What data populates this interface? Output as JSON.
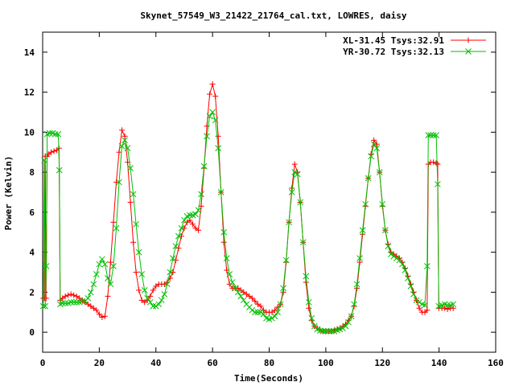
{
  "chart_data": {
    "type": "line",
    "title": "Skynet_57549_W3_21422_21764_cal.txt, LOWRES, daisy",
    "xlabel": "Time(Seconds)",
    "ylabel": "Power (Kelvin)",
    "xlim": [
      0,
      160
    ],
    "ylim": [
      -1,
      15
    ],
    "xticks": [
      0,
      20,
      40,
      60,
      80,
      100,
      120,
      140,
      160
    ],
    "yticks": [
      0,
      2,
      4,
      6,
      8,
      10,
      12,
      14
    ],
    "grid": false,
    "legend_position": "top-right",
    "series": [
      {
        "name": "XL-31.45 Tsys:32.91",
        "color": "#ff0000",
        "marker": "plus",
        "points": [
          [
            0.2,
            1.7
          ],
          [
            0.6,
            1.7
          ],
          [
            0.9,
            8.8
          ],
          [
            1.2,
            1.7
          ],
          [
            1.6,
            8.8
          ],
          [
            2.0,
            8.9
          ],
          [
            3.0,
            9.0
          ],
          [
            4.0,
            9.05
          ],
          [
            5.0,
            9.1
          ],
          [
            5.8,
            9.2
          ],
          [
            6.2,
            1.6
          ],
          [
            7,
            1.7
          ],
          [
            8,
            1.8
          ],
          [
            9,
            1.85
          ],
          [
            10,
            1.9
          ],
          [
            11,
            1.85
          ],
          [
            12,
            1.8
          ],
          [
            13,
            1.7
          ],
          [
            14,
            1.6
          ],
          [
            15,
            1.5
          ],
          [
            16,
            1.4
          ],
          [
            17,
            1.3
          ],
          [
            18,
            1.2
          ],
          [
            19,
            1.1
          ],
          [
            20,
            0.9
          ],
          [
            21,
            0.75
          ],
          [
            22,
            0.8
          ],
          [
            23,
            1.8
          ],
          [
            24,
            3.5
          ],
          [
            25,
            5.5
          ],
          [
            26,
            7.5
          ],
          [
            27,
            9.0
          ],
          [
            28,
            10.1
          ],
          [
            29,
            9.8
          ],
          [
            30,
            8.5
          ],
          [
            31,
            6.5
          ],
          [
            32,
            4.5
          ],
          [
            33,
            3.0
          ],
          [
            34,
            2.1
          ],
          [
            35,
            1.6
          ],
          [
            36,
            1.5
          ],
          [
            37,
            1.6
          ],
          [
            38,
            1.8
          ],
          [
            39,
            2.1
          ],
          [
            40,
            2.3
          ],
          [
            41,
            2.4
          ],
          [
            42,
            2.4
          ],
          [
            43,
            2.4
          ],
          [
            44,
            2.5
          ],
          [
            45,
            2.7
          ],
          [
            46,
            3.0
          ],
          [
            47,
            3.6
          ],
          [
            48,
            4.2
          ],
          [
            49,
            4.8
          ],
          [
            50,
            5.2
          ],
          [
            51,
            5.5
          ],
          [
            52,
            5.6
          ],
          [
            53,
            5.4
          ],
          [
            54,
            5.2
          ],
          [
            55,
            5.1
          ],
          [
            56,
            6.3
          ],
          [
            57,
            8.2
          ],
          [
            58,
            10.3
          ],
          [
            59,
            11.9
          ],
          [
            60,
            12.4
          ],
          [
            61,
            11.8
          ],
          [
            62,
            9.8
          ],
          [
            63,
            7.0
          ],
          [
            64,
            4.5
          ],
          [
            65,
            3.1
          ],
          [
            66,
            2.4
          ],
          [
            67,
            2.2
          ],
          [
            68,
            2.2
          ],
          [
            69,
            2.2
          ],
          [
            70,
            2.1
          ],
          [
            71,
            2.0
          ],
          [
            72,
            1.9
          ],
          [
            73,
            1.8
          ],
          [
            74,
            1.7
          ],
          [
            75,
            1.55
          ],
          [
            76,
            1.4
          ],
          [
            77,
            1.3
          ],
          [
            78,
            1.1
          ],
          [
            79,
            1.0
          ],
          [
            80,
            1.0
          ],
          [
            81,
            1.0
          ],
          [
            82,
            1.1
          ],
          [
            83,
            1.25
          ],
          [
            84,
            1.4
          ],
          [
            85,
            2.0
          ],
          [
            86,
            3.5
          ],
          [
            87,
            5.5
          ],
          [
            88,
            7.2
          ],
          [
            89,
            8.4
          ],
          [
            90,
            8.0
          ],
          [
            91,
            6.5
          ],
          [
            92,
            4.5
          ],
          [
            93,
            2.5
          ],
          [
            94,
            1.2
          ],
          [
            95,
            0.6
          ],
          [
            96,
            0.3
          ],
          [
            97,
            0.2
          ],
          [
            98,
            0.1
          ],
          [
            99,
            0.05
          ],
          [
            100,
            0.05
          ],
          [
            101,
            0.05
          ],
          [
            102,
            0.05
          ],
          [
            103,
            0.1
          ],
          [
            104,
            0.15
          ],
          [
            105,
            0.2
          ],
          [
            106,
            0.3
          ],
          [
            107,
            0.4
          ],
          [
            108,
            0.6
          ],
          [
            109,
            0.8
          ],
          [
            110,
            1.3
          ],
          [
            111,
            2.2
          ],
          [
            112,
            3.5
          ],
          [
            113,
            4.9
          ],
          [
            114,
            6.3
          ],
          [
            115,
            7.7
          ],
          [
            116,
            8.9
          ],
          [
            117,
            9.6
          ],
          [
            118,
            9.4
          ],
          [
            119,
            8.0
          ],
          [
            120,
            6.3
          ],
          [
            121,
            5.1
          ],
          [
            122,
            4.4
          ],
          [
            123,
            4.0
          ],
          [
            124,
            3.9
          ],
          [
            125,
            3.8
          ],
          [
            126,
            3.7
          ],
          [
            127,
            3.5
          ],
          [
            128,
            3.2
          ],
          [
            129,
            2.8
          ],
          [
            130,
            2.4
          ],
          [
            131,
            2.0
          ],
          [
            132,
            1.6
          ],
          [
            133,
            1.2
          ],
          [
            134,
            1.0
          ],
          [
            135,
            1.0
          ],
          [
            135.8,
            1.1
          ],
          [
            136.2,
            8.4
          ],
          [
            137,
            8.5
          ],
          [
            138,
            8.5
          ],
          [
            139,
            8.45
          ],
          [
            139.5,
            8.4
          ],
          [
            139.9,
            1.2
          ],
          [
            141,
            1.2
          ],
          [
            142,
            1.2
          ],
          [
            143,
            1.15
          ],
          [
            144,
            1.2
          ],
          [
            145,
            1.2
          ]
        ]
      },
      {
        "name": "YR-30.72 Tsys:32.13",
        "color": "#00c000",
        "marker": "cross",
        "points": [
          [
            0.2,
            1.3
          ],
          [
            0.6,
            8.6
          ],
          [
            0.9,
            1.3
          ],
          [
            1.3,
            3.3
          ],
          [
            1.6,
            9.9
          ],
          [
            2.5,
            9.95
          ],
          [
            3.5,
            9.95
          ],
          [
            4.5,
            9.9
          ],
          [
            5.5,
            9.9
          ],
          [
            5.9,
            8.1
          ],
          [
            6.2,
            1.4
          ],
          [
            7,
            1.45
          ],
          [
            8,
            1.45
          ],
          [
            9,
            1.45
          ],
          [
            10,
            1.5
          ],
          [
            11,
            1.5
          ],
          [
            12,
            1.5
          ],
          [
            13,
            1.5
          ],
          [
            14,
            1.55
          ],
          [
            15,
            1.55
          ],
          [
            16,
            1.7
          ],
          [
            17,
            2.0
          ],
          [
            18,
            2.4
          ],
          [
            19,
            2.9
          ],
          [
            20,
            3.4
          ],
          [
            21,
            3.65
          ],
          [
            22,
            3.4
          ],
          [
            23,
            2.7
          ],
          [
            24,
            2.4
          ],
          [
            25,
            3.3
          ],
          [
            26,
            5.2
          ],
          [
            27,
            7.5
          ],
          [
            28,
            9.3
          ],
          [
            29,
            9.6
          ],
          [
            30,
            9.2
          ],
          [
            31,
            8.2
          ],
          [
            32,
            6.9
          ],
          [
            33,
            5.4
          ],
          [
            34,
            4.0
          ],
          [
            35,
            2.9
          ],
          [
            36,
            2.1
          ],
          [
            37,
            1.7
          ],
          [
            38,
            1.5
          ],
          [
            39,
            1.3
          ],
          [
            40,
            1.3
          ],
          [
            41,
            1.4
          ],
          [
            42,
            1.6
          ],
          [
            43,
            1.9
          ],
          [
            44,
            2.4
          ],
          [
            45,
            3.0
          ],
          [
            46,
            3.7
          ],
          [
            47,
            4.3
          ],
          [
            48,
            4.8
          ],
          [
            49,
            5.2
          ],
          [
            50,
            5.6
          ],
          [
            51,
            5.8
          ],
          [
            52,
            5.85
          ],
          [
            53,
            5.85
          ],
          [
            54,
            5.9
          ],
          [
            55,
            6.1
          ],
          [
            56,
            6.9
          ],
          [
            57,
            8.3
          ],
          [
            58,
            9.8
          ],
          [
            59,
            10.8
          ],
          [
            60,
            11.0
          ],
          [
            61,
            10.6
          ],
          [
            62,
            9.2
          ],
          [
            63,
            7.0
          ],
          [
            64,
            5.0
          ],
          [
            65,
            3.7
          ],
          [
            66,
            2.9
          ],
          [
            67,
            2.5
          ],
          [
            68,
            2.2
          ],
          [
            69,
            2.0
          ],
          [
            70,
            1.8
          ],
          [
            71,
            1.6
          ],
          [
            72,
            1.4
          ],
          [
            73,
            1.25
          ],
          [
            74,
            1.1
          ],
          [
            75,
            1.0
          ],
          [
            76,
            1.0
          ],
          [
            77,
            1.0
          ],
          [
            78,
            0.9
          ],
          [
            79,
            0.7
          ],
          [
            80,
            0.65
          ],
          [
            81,
            0.7
          ],
          [
            82,
            0.8
          ],
          [
            83,
            1.0
          ],
          [
            84,
            1.4
          ],
          [
            85,
            2.2
          ],
          [
            86,
            3.6
          ],
          [
            87,
            5.5
          ],
          [
            88,
            7.0
          ],
          [
            89,
            8.0
          ],
          [
            90,
            7.9
          ],
          [
            91,
            6.5
          ],
          [
            92,
            4.5
          ],
          [
            93,
            2.8
          ],
          [
            94,
            1.5
          ],
          [
            95,
            0.7
          ],
          [
            96,
            0.3
          ],
          [
            97,
            0.15
          ],
          [
            98,
            0.08
          ],
          [
            99,
            0.05
          ],
          [
            100,
            0.05
          ],
          [
            101,
            0.05
          ],
          [
            102,
            0.05
          ],
          [
            103,
            0.05
          ],
          [
            104,
            0.1
          ],
          [
            105,
            0.15
          ],
          [
            106,
            0.2
          ],
          [
            107,
            0.3
          ],
          [
            108,
            0.5
          ],
          [
            109,
            0.8
          ],
          [
            110,
            1.4
          ],
          [
            111,
            2.4
          ],
          [
            112,
            3.7
          ],
          [
            113,
            5.1
          ],
          [
            114,
            6.4
          ],
          [
            115,
            7.7
          ],
          [
            116,
            8.8
          ],
          [
            117,
            9.4
          ],
          [
            118,
            9.2
          ],
          [
            119,
            8.0
          ],
          [
            120,
            6.4
          ],
          [
            121,
            5.1
          ],
          [
            122,
            4.3
          ],
          [
            123,
            3.9
          ],
          [
            124,
            3.8
          ],
          [
            125,
            3.7
          ],
          [
            126,
            3.6
          ],
          [
            127,
            3.4
          ],
          [
            128,
            3.1
          ],
          [
            129,
            2.7
          ],
          [
            130,
            2.3
          ],
          [
            131,
            1.9
          ],
          [
            132,
            1.6
          ],
          [
            133,
            1.5
          ],
          [
            134,
            1.4
          ],
          [
            135,
            1.35
          ],
          [
            135.8,
            3.3
          ],
          [
            136.2,
            9.85
          ],
          [
            137,
            9.85
          ],
          [
            138,
            9.85
          ],
          [
            139,
            9.85
          ],
          [
            139.5,
            7.4
          ],
          [
            139.9,
            1.3
          ],
          [
            141,
            1.35
          ],
          [
            142,
            1.4
          ],
          [
            143,
            1.35
          ],
          [
            144,
            1.35
          ],
          [
            145,
            1.4
          ]
        ]
      }
    ]
  }
}
